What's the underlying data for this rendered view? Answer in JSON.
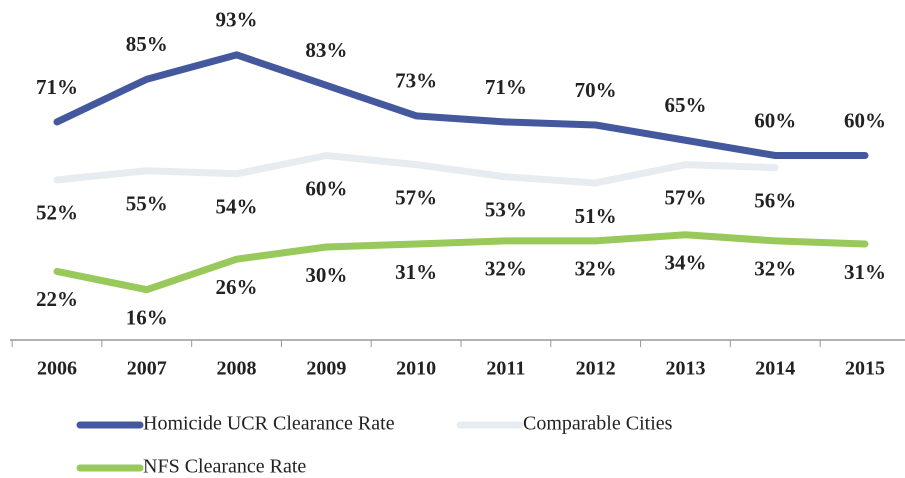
{
  "chart_data": {
    "type": "line",
    "categories": [
      "2006",
      "2007",
      "2008",
      "2009",
      "2010",
      "2011",
      "2012",
      "2013",
      "2014",
      "2015"
    ],
    "series": [
      {
        "name": "Homicide UCR Clearance Rate",
        "color": "#44589e",
        "values": [
          71,
          85,
          93,
          83,
          73,
          71,
          70,
          65,
          60,
          60
        ],
        "value_labels": [
          "71%",
          "85%",
          "93%",
          "83%",
          "73%",
          "71%",
          "70%",
          "65%",
          "60%",
          "60%"
        ]
      },
      {
        "name": "Comparable Cities",
        "color": "#e6ecf0",
        "values": [
          52,
          55,
          54,
          60,
          57,
          53,
          51,
          57,
          56,
          null
        ],
        "value_labels": [
          "52%",
          "55%",
          "54%",
          "60%",
          "57%",
          "53%",
          "51%",
          "57%",
          "56%",
          null
        ]
      },
      {
        "name": "NFS Clearance Rate",
        "color": "#98c95a",
        "values": [
          22,
          16,
          26,
          30,
          31,
          32,
          32,
          34,
          32,
          31
        ],
        "value_labels": [
          "22%",
          "16%",
          "26%",
          "30%",
          "31%",
          "32%",
          "32%",
          "34%",
          "32%",
          "31%"
        ]
      }
    ],
    "ylim": [
      10,
      100
    ]
  }
}
